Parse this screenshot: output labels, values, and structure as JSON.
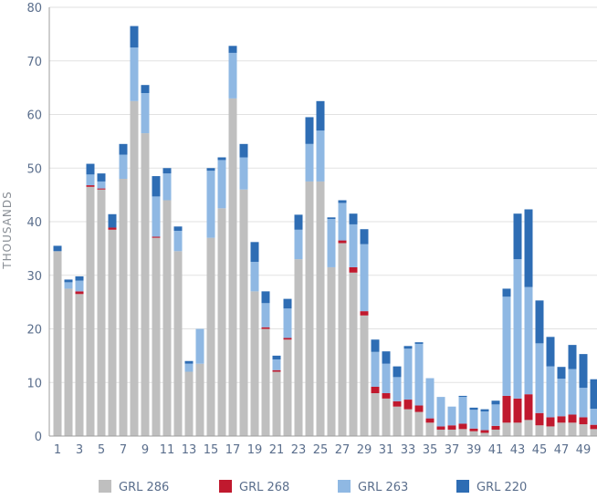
{
  "colors": {
    "grl286": "#bfbfbf",
    "grl268": "#c0192e",
    "grl263": "#8fb8e3",
    "grl220": "#2e6db4",
    "axis": "#9e9e9e",
    "grid": "#e2e2e2",
    "tick_text": "#5a6e8c"
  },
  "chart_data": {
    "type": "bar",
    "stacked": true,
    "title": "",
    "xlabel": "",
    "ylabel": "THOUSANDS",
    "ylim": [
      0,
      80
    ],
    "yticks": [
      0,
      10,
      20,
      30,
      40,
      50,
      60,
      70,
      80
    ],
    "grid": true,
    "legend_position": "bottom",
    "categories": [
      "1",
      "2",
      "3",
      "4",
      "5",
      "6",
      "7",
      "8",
      "9",
      "10",
      "11",
      "12",
      "13",
      "14",
      "15",
      "16",
      "17",
      "18",
      "19",
      "20",
      "21",
      "22",
      "23",
      "24",
      "25",
      "26",
      "27",
      "28",
      "29",
      "30",
      "31",
      "32",
      "33",
      "34",
      "35",
      "36",
      "37",
      "38",
      "39",
      "40",
      "41",
      "42",
      "43",
      "44",
      "45",
      "46",
      "47",
      "48",
      "49",
      "50"
    ],
    "xtick_labels": [
      "1",
      "3",
      "5",
      "7",
      "9",
      "11",
      "13",
      "15",
      "17",
      "19",
      "21",
      "23",
      "25",
      "27",
      "29",
      "31",
      "33",
      "35",
      "37",
      "39",
      "41",
      "43",
      "45",
      "47",
      "49"
    ],
    "series": [
      {
        "name": "GRL 286",
        "color_key": "grl286",
        "values": [
          34.5,
          27.5,
          26.5,
          46.5,
          46,
          38.5,
          48,
          62.5,
          56.5,
          37,
          44,
          34.5,
          12,
          13.5,
          37,
          42.5,
          63,
          46,
          27,
          20,
          12,
          18,
          33,
          47.5,
          47.5,
          31.5,
          36,
          30.5,
          22.5,
          8,
          7,
          5.5,
          5,
          4.5,
          2.5,
          1.2,
          1.2,
          1.3,
          0.9,
          0.6,
          1.2,
          2.5,
          2.5,
          3,
          2,
          1.8,
          2.5,
          2.5,
          2.2,
          1.3
        ]
      },
      {
        "name": "GRL 268",
        "color_key": "grl268",
        "values": [
          0,
          0,
          0.5,
          0.3,
          0.2,
          0.4,
          0,
          0,
          0,
          0.2,
          0,
          0,
          0,
          0,
          0,
          0,
          0,
          0,
          0,
          0.3,
          0.3,
          0.3,
          0,
          0,
          0,
          0,
          0.5,
          1,
          0.8,
          1.2,
          1,
          1,
          1.8,
          1.2,
          0.8,
          0.6,
          0.8,
          1,
          0.5,
          0.5,
          0.7,
          5,
          4.5,
          4.8,
          2.3,
          1.7,
          1.2,
          1.5,
          1.3,
          0.8
        ]
      },
      {
        "name": "GRL 263",
        "color_key": "grl263",
        "values": [
          0,
          1.2,
          2,
          2,
          1.3,
          0,
          4.5,
          10,
          7.5,
          7.5,
          5,
          3.8,
          1.5,
          6.5,
          12.5,
          9,
          8.5,
          6,
          5.5,
          4.5,
          2,
          5.5,
          5.5,
          7,
          9.5,
          9,
          7,
          8,
          12.5,
          6.5,
          5.5,
          4.5,
          9.5,
          11.5,
          7.5,
          5.5,
          3.5,
          5,
          3.5,
          3.5,
          4,
          18.5,
          26,
          20,
          13,
          9.5,
          7,
          8.5,
          5.5,
          3
        ]
      },
      {
        "name": "GRL 220",
        "color_key": "grl220",
        "values": [
          1,
          0.5,
          0.8,
          2,
          1.5,
          2.5,
          2,
          4,
          1.5,
          3.8,
          1,
          0.8,
          0.5,
          0,
          0.5,
          0.5,
          1.3,
          2.5,
          3.7,
          2.2,
          0.7,
          1.8,
          2.8,
          5,
          5.5,
          0.3,
          0.5,
          2,
          2.8,
          2.3,
          2.3,
          2,
          0.5,
          0.3,
          0,
          0,
          0,
          0.2,
          0.4,
          0.4,
          0.7,
          1.5,
          8.5,
          14.5,
          8,
          5.5,
          2.2,
          4.5,
          6.3,
          5.5
        ]
      }
    ]
  }
}
